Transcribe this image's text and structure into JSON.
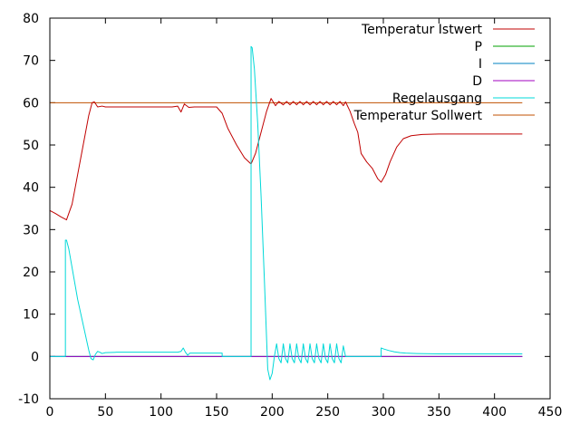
{
  "chart_data": {
    "type": "line",
    "title": "",
    "xlabel": "",
    "ylabel": "",
    "xlim": [
      0,
      450
    ],
    "ylim": [
      -10,
      80
    ],
    "x_ticks": [
      0,
      50,
      100,
      150,
      200,
      250,
      300,
      350,
      400,
      450
    ],
    "y_ticks": [
      -10,
      0,
      10,
      20,
      30,
      40,
      50,
      60,
      70,
      80
    ],
    "grid": false,
    "legend_position": "top-right",
    "series": [
      {
        "name": "Temperatur Istwert",
        "color": "#c00000",
        "points": [
          [
            0,
            34.5
          ],
          [
            5,
            33.8
          ],
          [
            10,
            33
          ],
          [
            15,
            32.3
          ],
          [
            20,
            36
          ],
          [
            25,
            43
          ],
          [
            30,
            50
          ],
          [
            35,
            57
          ],
          [
            38,
            60
          ],
          [
            40,
            60.2
          ],
          [
            43,
            59
          ],
          [
            47,
            59.2
          ],
          [
            50,
            59
          ],
          [
            60,
            59
          ],
          [
            80,
            59
          ],
          [
            100,
            59
          ],
          [
            110,
            59
          ],
          [
            115,
            59.2
          ],
          [
            118,
            57.8
          ],
          [
            121,
            59.7
          ],
          [
            125,
            58.9
          ],
          [
            130,
            59
          ],
          [
            145,
            59
          ],
          [
            150,
            59
          ],
          [
            155,
            57.5
          ],
          [
            160,
            54
          ],
          [
            168,
            50
          ],
          [
            175,
            47
          ],
          [
            181,
            45.5
          ],
          [
            185,
            48
          ],
          [
            190,
            53
          ],
          [
            195,
            58
          ],
          [
            199,
            61
          ],
          [
            203,
            59.3
          ],
          [
            206,
            60.3
          ],
          [
            210,
            59.5
          ],
          [
            213,
            60.3
          ],
          [
            216,
            59.5
          ],
          [
            219,
            60.3
          ],
          [
            222,
            59.5
          ],
          [
            225,
            60.3
          ],
          [
            228,
            59.5
          ],
          [
            231,
            60.3
          ],
          [
            234,
            59.5
          ],
          [
            237,
            60.3
          ],
          [
            240,
            59.5
          ],
          [
            243,
            60.3
          ],
          [
            246,
            59.5
          ],
          [
            249,
            60.3
          ],
          [
            252,
            59.5
          ],
          [
            255,
            60.3
          ],
          [
            258,
            59.5
          ],
          [
            261,
            60.3
          ],
          [
            264,
            59.3
          ],
          [
            266,
            60.2
          ],
          [
            270,
            58
          ],
          [
            274,
            55
          ],
          [
            277,
            53
          ],
          [
            280,
            48
          ],
          [
            285,
            46
          ],
          [
            290,
            44.5
          ],
          [
            295,
            42
          ],
          [
            298,
            41.2
          ],
          [
            302,
            43
          ],
          [
            306,
            46
          ],
          [
            312,
            49.5
          ],
          [
            318,
            51.5
          ],
          [
            325,
            52.2
          ],
          [
            335,
            52.5
          ],
          [
            350,
            52.6
          ],
          [
            380,
            52.6
          ],
          [
            400,
            52.6
          ],
          [
            425,
            52.6
          ]
        ]
      },
      {
        "name": "P",
        "color": "#00a000",
        "points": [
          [
            0,
            0
          ],
          [
            425,
            0
          ]
        ]
      },
      {
        "name": "I",
        "color": "#0080c0",
        "points": [
          [
            0,
            0
          ],
          [
            425,
            0
          ]
        ]
      },
      {
        "name": "D",
        "color": "#a000c0",
        "points": [
          [
            0,
            0
          ],
          [
            425,
            0
          ]
        ]
      },
      {
        "name": "Regelausgang",
        "color": "#00d8d8",
        "points": [
          [
            0,
            0
          ],
          [
            14,
            0
          ],
          [
            14,
            27.5
          ],
          [
            15,
            27.5
          ],
          [
            17,
            25.5
          ],
          [
            20,
            21
          ],
          [
            25,
            13.5
          ],
          [
            30,
            7.5
          ],
          [
            35,
            1.5
          ],
          [
            37,
            -0.5
          ],
          [
            39,
            -0.8
          ],
          [
            41,
            0.5
          ],
          [
            43,
            1.2
          ],
          [
            45,
            1
          ],
          [
            47,
            0.7
          ],
          [
            50,
            0.9
          ],
          [
            60,
            1
          ],
          [
            80,
            1
          ],
          [
            100,
            1
          ],
          [
            115,
            1
          ],
          [
            118,
            1.2
          ],
          [
            120,
            2
          ],
          [
            122,
            1
          ],
          [
            124,
            0.3
          ],
          [
            126,
            0.8
          ],
          [
            130,
            0.8
          ],
          [
            140,
            0.8
          ],
          [
            150,
            0.8
          ],
          [
            155,
            0.8
          ],
          [
            155,
            0
          ],
          [
            181,
            0
          ],
          [
            181,
            73.3
          ],
          [
            182,
            73
          ],
          [
            184,
            68
          ],
          [
            187,
            55
          ],
          [
            190,
            38
          ],
          [
            193,
            18
          ],
          [
            196,
            -3
          ],
          [
            198,
            -5.5
          ],
          [
            200,
            -4
          ],
          [
            202,
            0
          ],
          [
            204,
            3
          ],
          [
            206,
            -0.5
          ],
          [
            208,
            -1.5
          ],
          [
            210,
            3
          ],
          [
            212,
            -0.5
          ],
          [
            214,
            -1.5
          ],
          [
            216,
            3
          ],
          [
            218,
            -0.5
          ],
          [
            220,
            -1.5
          ],
          [
            222,
            3
          ],
          [
            224,
            -0.5
          ],
          [
            226,
            -1.5
          ],
          [
            228,
            3
          ],
          [
            230,
            -0.5
          ],
          [
            232,
            -1.5
          ],
          [
            234,
            3
          ],
          [
            236,
            -0.5
          ],
          [
            238,
            -1.5
          ],
          [
            240,
            3
          ],
          [
            242,
            -0.5
          ],
          [
            244,
            -1.5
          ],
          [
            246,
            3
          ],
          [
            248,
            -0.5
          ],
          [
            250,
            -1.5
          ],
          [
            252,
            3
          ],
          [
            254,
            -0.5
          ],
          [
            256,
            -1.5
          ],
          [
            258,
            3
          ],
          [
            260,
            -0.5
          ],
          [
            262,
            -1.5
          ],
          [
            264,
            2.5
          ],
          [
            266,
            0
          ],
          [
            298,
            0
          ],
          [
            298,
            2
          ],
          [
            300,
            1.8
          ],
          [
            305,
            1.4
          ],
          [
            310,
            1.1
          ],
          [
            315,
            0.9
          ],
          [
            320,
            0.8
          ],
          [
            330,
            0.7
          ],
          [
            350,
            0.6
          ],
          [
            380,
            0.6
          ],
          [
            400,
            0.6
          ],
          [
            425,
            0.6
          ]
        ]
      },
      {
        "name": "Temperatur Sollwert",
        "color": "#c05000",
        "points": [
          [
            0,
            60
          ],
          [
            425,
            60
          ]
        ]
      }
    ]
  }
}
